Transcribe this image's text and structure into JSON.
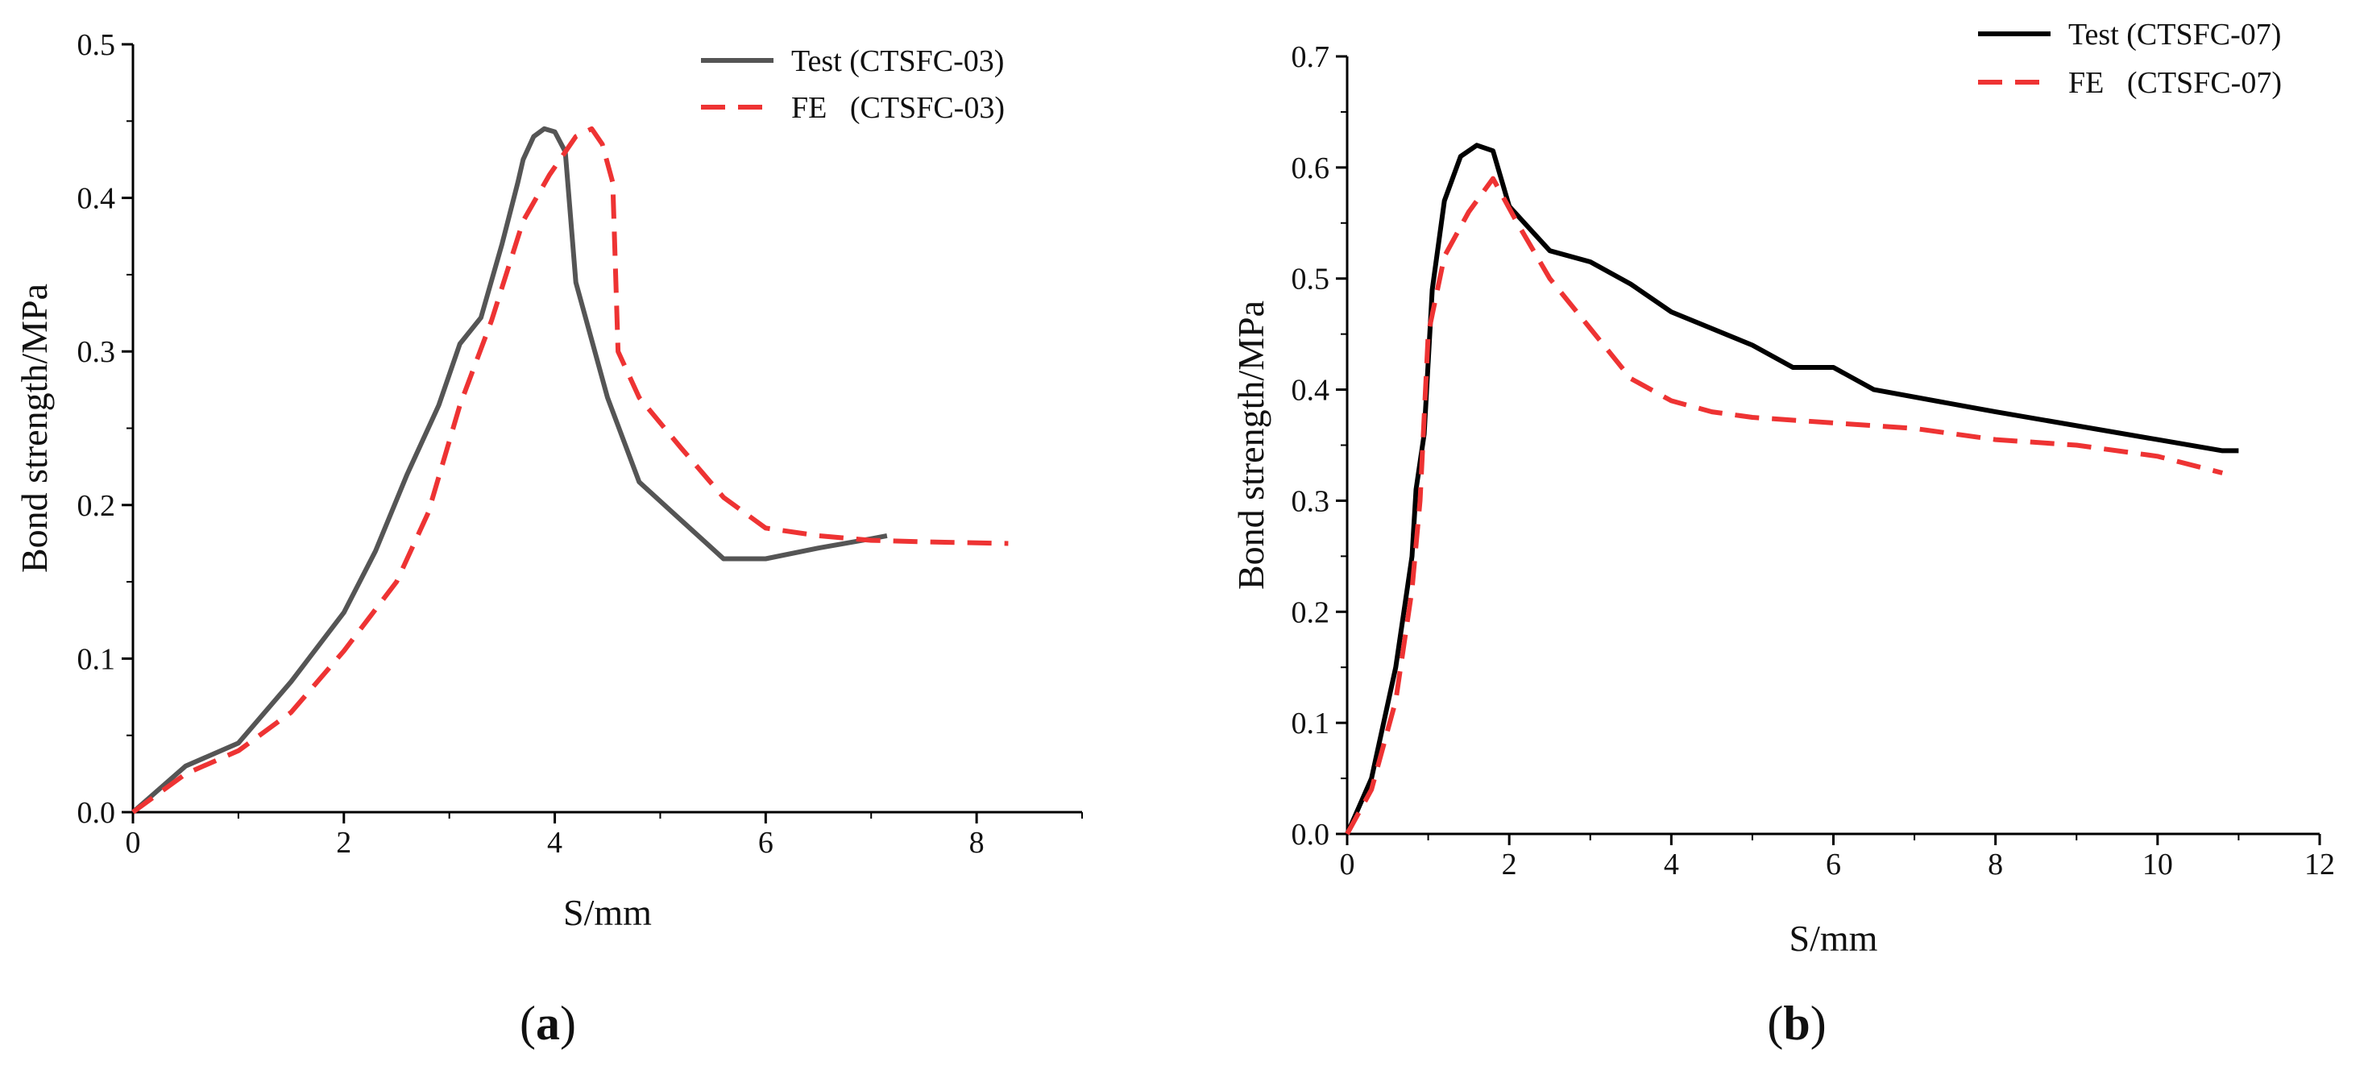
{
  "chart_data": [
    {
      "type": "line",
      "panel_label": "(a)",
      "panel_open": "(",
      "panel_letter": "a",
      "panel_close": ")",
      "title": "",
      "xlabel": "S/mm",
      "ylabel": "Bond strength/MPa",
      "xlim": [
        0,
        9
      ],
      "ylim": [
        0,
        0.5
      ],
      "xticks": [
        0,
        2,
        4,
        6,
        8
      ],
      "xtick_labels": [
        "0",
        "2",
        "4",
        "6",
        "8"
      ],
      "yticks": [
        0.0,
        0.1,
        0.2,
        0.3,
        0.4,
        0.5
      ],
      "ytick_labels": [
        "0.0",
        "0.1",
        "0.2",
        "0.3",
        "0.4",
        "0.5"
      ],
      "legend_position": "top-right",
      "grid": false,
      "series": [
        {
          "name": "Test (CTSFC-03)",
          "color": "#555555",
          "style": "solid",
          "x": [
            0,
            0.5,
            1.0,
            1.5,
            2.0,
            2.3,
            2.6,
            2.9,
            3.1,
            3.3,
            3.5,
            3.65,
            3.7,
            3.8,
            3.9,
            4.0,
            4.1,
            4.2,
            4.5,
            4.8,
            5.2,
            5.6,
            6.0,
            6.5,
            7.0,
            7.15
          ],
          "y": [
            0,
            0.03,
            0.045,
            0.085,
            0.13,
            0.17,
            0.22,
            0.265,
            0.305,
            0.322,
            0.37,
            0.41,
            0.425,
            0.44,
            0.445,
            0.443,
            0.43,
            0.345,
            0.27,
            0.215,
            0.19,
            0.165,
            0.165,
            0.172,
            0.178,
            0.18
          ]
        },
        {
          "name": "FE   (CTSFC-03)",
          "color": "#ee3333",
          "style": "dashed",
          "x": [
            0,
            0.5,
            1.0,
            1.5,
            2.0,
            2.5,
            2.8,
            3.1,
            3.4,
            3.7,
            3.95,
            4.2,
            4.35,
            4.45,
            4.55,
            4.6,
            4.8,
            5.2,
            5.6,
            6.0,
            6.5,
            7.0,
            7.5,
            8.3
          ],
          "y": [
            0,
            0.025,
            0.04,
            0.065,
            0.105,
            0.15,
            0.195,
            0.265,
            0.32,
            0.385,
            0.415,
            0.44,
            0.445,
            0.435,
            0.41,
            0.3,
            0.27,
            0.237,
            0.205,
            0.185,
            0.18,
            0.177,
            0.176,
            0.175
          ]
        }
      ]
    },
    {
      "type": "line",
      "panel_label": "(b)",
      "panel_open": "(",
      "panel_letter": "b",
      "panel_close": ")",
      "title": "",
      "xlabel": "S/mm",
      "ylabel": "Bond strength/MPa",
      "xlim": [
        0,
        12
      ],
      "ylim": [
        0,
        0.7
      ],
      "xticks": [
        0,
        2,
        4,
        6,
        8,
        10,
        12
      ],
      "xtick_labels": [
        "0",
        "2",
        "4",
        "6",
        "8",
        "10",
        "12"
      ],
      "yticks": [
        0.0,
        0.1,
        0.2,
        0.3,
        0.4,
        0.5,
        0.6,
        0.7
      ],
      "ytick_labels": [
        "0.0",
        "0.1",
        "0.2",
        "0.3",
        "0.4",
        "0.5",
        "0.6",
        "0.7"
      ],
      "legend_position": "top-right",
      "grid": false,
      "series": [
        {
          "name": "Test (CTSFC-07)",
          "color": "#000000",
          "style": "solid",
          "x": [
            0,
            0.3,
            0.6,
            0.8,
            0.85,
            0.95,
            1.05,
            1.2,
            1.4,
            1.6,
            1.8,
            2.0,
            2.5,
            3.0,
            3.5,
            4.0,
            5.0,
            5.5,
            6.0,
            6.5,
            8.0,
            10.0,
            10.8,
            11.0
          ],
          "y": [
            0,
            0.05,
            0.15,
            0.25,
            0.31,
            0.36,
            0.49,
            0.57,
            0.61,
            0.62,
            0.615,
            0.565,
            0.525,
            0.515,
            0.495,
            0.47,
            0.44,
            0.42,
            0.42,
            0.4,
            0.38,
            0.355,
            0.345,
            0.345
          ]
        },
        {
          "name": "FE   (CTSFC-07)",
          "color": "#ee3333",
          "style": "dashed",
          "x": [
            0,
            0.3,
            0.6,
            0.8,
            0.9,
            1.0,
            1.2,
            1.5,
            1.8,
            2.1,
            2.5,
            3.0,
            3.5,
            4.0,
            4.5,
            5.0,
            6.0,
            7.0,
            8.0,
            9.0,
            10.0,
            10.8
          ],
          "y": [
            0,
            0.04,
            0.12,
            0.22,
            0.3,
            0.45,
            0.52,
            0.56,
            0.59,
            0.55,
            0.5,
            0.455,
            0.41,
            0.39,
            0.38,
            0.375,
            0.37,
            0.365,
            0.355,
            0.35,
            0.34,
            0.325
          ]
        }
      ]
    }
  ]
}
